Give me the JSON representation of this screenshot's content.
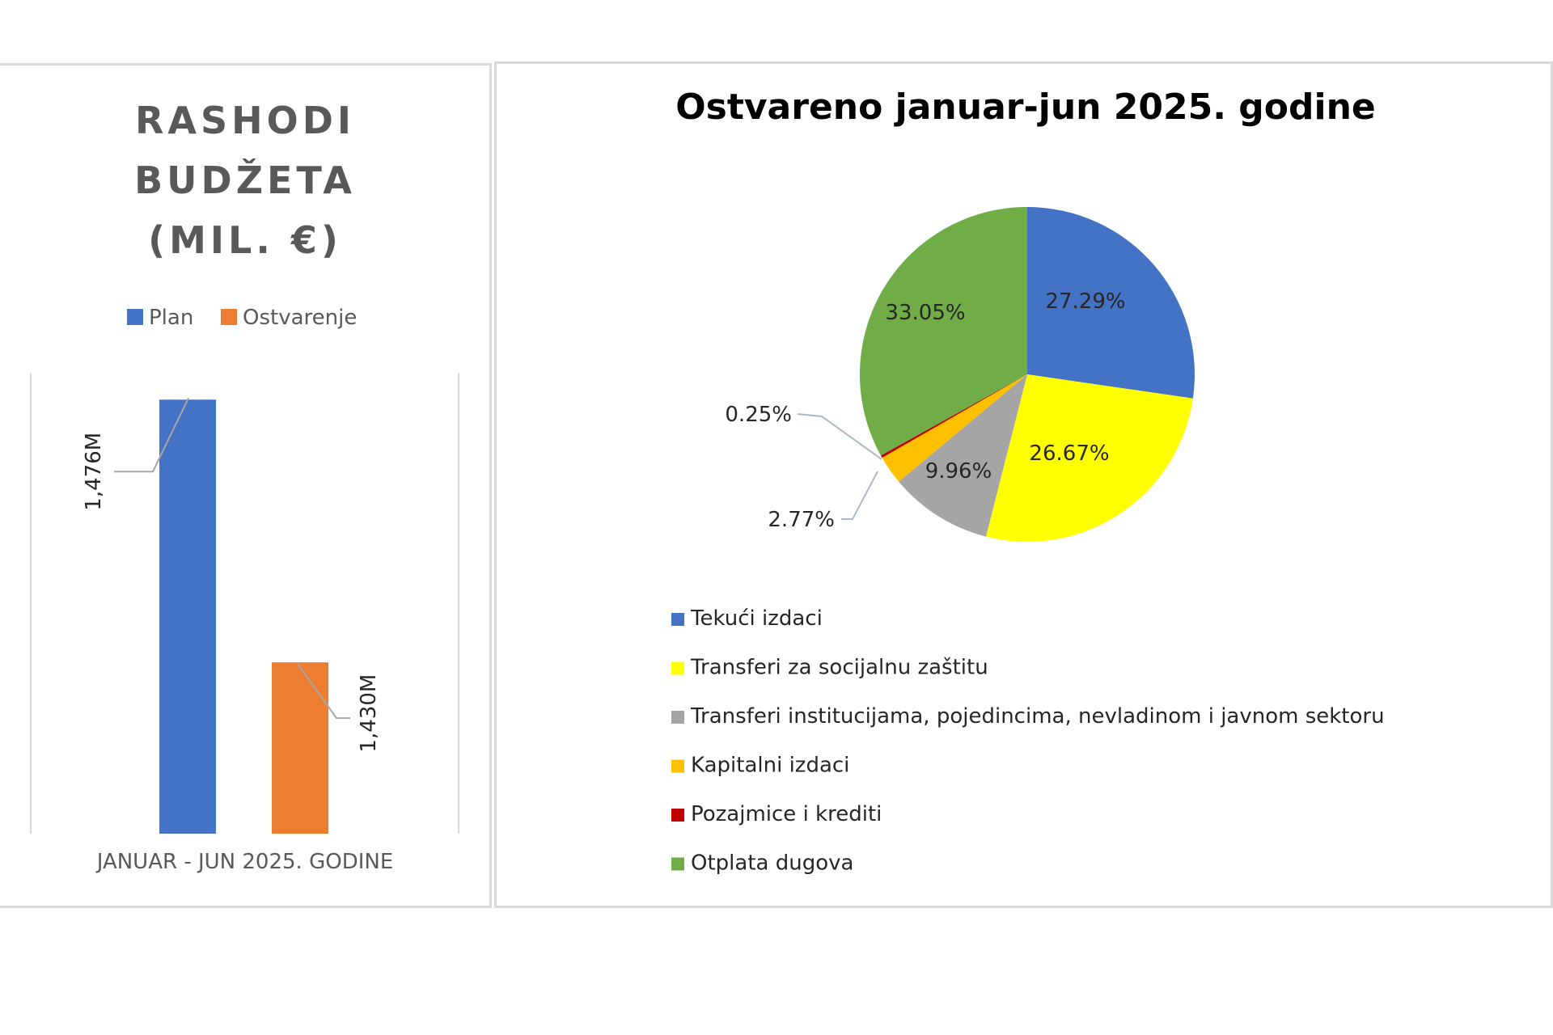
{
  "chart_data": [
    {
      "type": "bar",
      "title_lines": [
        "RASHODI",
        "BUDŽETA",
        "(MIL. €)"
      ],
      "categories": [
        "JANUAR - JUN 2025. GODINE"
      ],
      "series": [
        {
          "name": "Plan",
          "values": [
            1476
          ],
          "label": "1,476M",
          "color": "#4472C4"
        },
        {
          "name": "Ostvarenje",
          "values": [
            1430
          ],
          "label": "1,430M",
          "color": "#ED7D31"
        }
      ],
      "grid": false,
      "legend_position": "top"
    },
    {
      "type": "pie",
      "title": "Ostvareno januar-jun 2025. godine",
      "slices": [
        {
          "name": "Tekući izdaci",
          "value": 27.29,
          "label": "27.29%",
          "color": "#4472C4"
        },
        {
          "name": "Transferi za socijalnu zaštitu",
          "value": 26.67,
          "label": "26.67%",
          "color": "#FFFF00"
        },
        {
          "name": "Transferi institucijama, pojedincima, nevladinom i javnom sektoru",
          "value": 9.96,
          "label": "9.96%",
          "color": "#A5A5A5"
        },
        {
          "name": "Kapitalni izdaci",
          "value": 2.77,
          "label": "2.77%",
          "color": "#FFC000"
        },
        {
          "name": "Pozajmice i krediti",
          "value": 0.25,
          "label": "0.25%",
          "color": "#C00000"
        },
        {
          "name": "Otplata dugova",
          "value": 33.05,
          "label": "33.05%",
          "color": "#70AD47"
        }
      ],
      "legend_position": "bottom"
    }
  ]
}
